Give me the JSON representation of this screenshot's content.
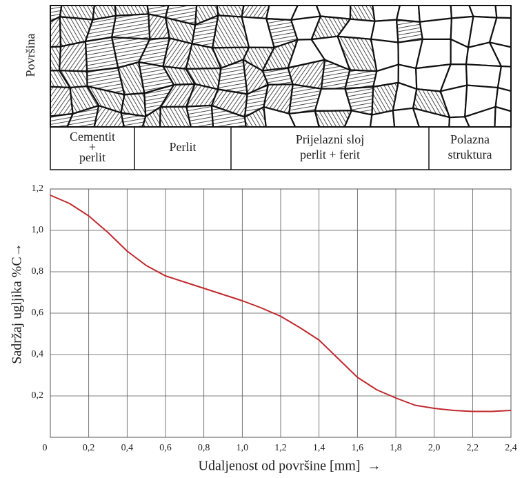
{
  "structure": {
    "side_label": "Površina",
    "zones": [
      [
        "Cementit",
        "+",
        "perlit"
      ],
      [
        "Perlit"
      ],
      [
        "Prijelazni sloj",
        "perlit + ferit"
      ],
      [
        "Polazna",
        "struktura"
      ]
    ]
  },
  "chart_data": {
    "type": "line",
    "y_label": "Sadržaj ugljika %C→",
    "x_label": "Udaljenost od površine [mm]  →",
    "x": [
      0,
      0.1,
      0.2,
      0.3,
      0.4,
      0.5,
      0.6,
      0.7,
      0.8,
      0.9,
      1.0,
      1.1,
      1.2,
      1.3,
      1.4,
      1.5,
      1.6,
      1.7,
      1.8,
      1.9,
      2.0,
      2.1,
      2.2,
      2.3,
      2.4
    ],
    "values": [
      1.17,
      1.13,
      1.07,
      0.99,
      0.9,
      0.83,
      0.78,
      0.75,
      0.72,
      0.69,
      0.66,
      0.625,
      0.585,
      0.53,
      0.47,
      0.38,
      0.29,
      0.23,
      0.19,
      0.155,
      0.14,
      0.13,
      0.125,
      0.125,
      0.13
    ],
    "color": "#c0282d",
    "xlim": [
      0,
      2.4
    ],
    "ylim": [
      0,
      1.2
    ],
    "xticks": [
      0,
      {
        "value": 0.2,
        "label": "0,2"
      },
      {
        "value": 0.4,
        "label": "0,4"
      },
      {
        "value": 0.6,
        "label": "0,6"
      },
      {
        "value": 0.8,
        "label": "0,8"
      },
      {
        "value": 1.0,
        "label": "1,0"
      },
      {
        "value": 1.2,
        "label": "1,2"
      },
      {
        "value": 1.4,
        "label": "1,4"
      },
      {
        "value": 1.6,
        "label": "1,6"
      },
      {
        "value": 1.8,
        "label": "1,8"
      },
      {
        "value": 2.0,
        "label": "2,0"
      },
      {
        "value": 2.2,
        "label": "2,2"
      },
      {
        "value": 2.4,
        "label": "2,4"
      }
    ],
    "yticks": [
      {
        "value": 0.2,
        "label": "0,2"
      },
      {
        "value": 0.4,
        "label": "0,4"
      },
      {
        "value": 0.6,
        "label": "0,6"
      },
      {
        "value": 0.8,
        "label": "0,8"
      },
      {
        "value": 1.0,
        "label": "1,0"
      },
      {
        "value": 1.2,
        "label": "1,2"
      }
    ],
    "grid": true
  }
}
